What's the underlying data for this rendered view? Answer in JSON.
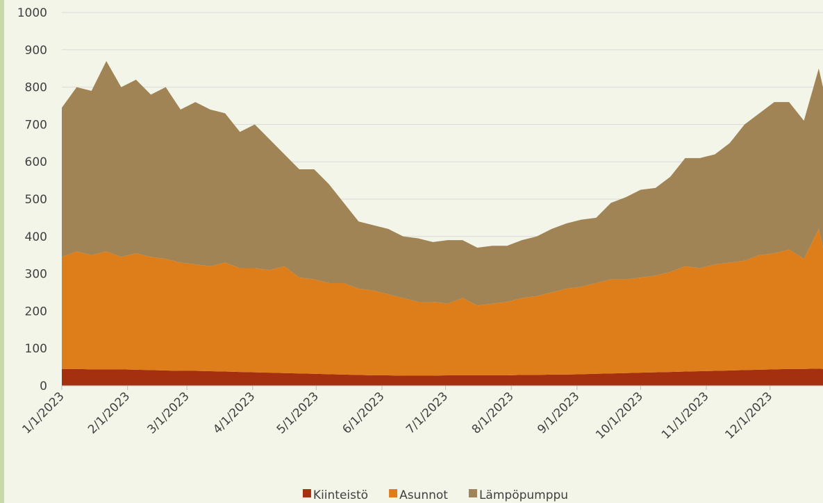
{
  "chart_data": {
    "type": "stacked_area",
    "x": [
      "1/1/2023",
      "1/8/2023",
      "1/15/2023",
      "1/22/2023",
      "1/29/2023",
      "2/5/2023",
      "2/12/2023",
      "2/19/2023",
      "2/26/2023",
      "3/5/2023",
      "3/12/2023",
      "3/19/2023",
      "3/26/2023",
      "4/2/2023",
      "4/9/2023",
      "4/16/2023",
      "4/23/2023",
      "4/30/2023",
      "5/7/2023",
      "5/14/2023",
      "5/21/2023",
      "5/28/2023",
      "6/4/2023",
      "6/11/2023",
      "6/18/2023",
      "6/25/2023",
      "7/2/2023",
      "7/9/2023",
      "7/16/2023",
      "7/23/2023",
      "7/30/2023",
      "8/6/2023",
      "8/13/2023",
      "8/20/2023",
      "8/27/2023",
      "9/3/2023",
      "9/10/2023",
      "9/17/2023",
      "9/24/2023",
      "10/1/2023",
      "10/8/2023",
      "10/15/2023",
      "10/22/2023",
      "10/29/2023",
      "11/5/2023",
      "11/12/2023",
      "11/19/2023",
      "11/26/2023",
      "12/3/2023",
      "12/10/2023",
      "12/17/2023",
      "12/24/2023",
      "12/26/2023"
    ],
    "series": [
      {
        "name": "Kiinteistö",
        "color": "#a5300f",
        "values": [
          45,
          45,
          44,
          44,
          44,
          43,
          42,
          41,
          40,
          40,
          39,
          38,
          37,
          36,
          35,
          34,
          33,
          32,
          31,
          30,
          29,
          28,
          28,
          27,
          27,
          27,
          28,
          28,
          28,
          28,
          28,
          29,
          29,
          30,
          30,
          31,
          32,
          33,
          34,
          35,
          36,
          37,
          38,
          39,
          40,
          41,
          42,
          43,
          44,
          45,
          45,
          46,
          45
        ]
      },
      {
        "name": "Asunnot",
        "color": "#de7e1b",
        "values": [
          300,
          315,
          306,
          316,
          301,
          312,
          303,
          299,
          290,
          285,
          281,
          292,
          278,
          279,
          275,
          286,
          257,
          253,
          244,
          245,
          231,
          227,
          217,
          208,
          198,
          198,
          192,
          207,
          187,
          192,
          197,
          206,
          211,
          220,
          230,
          234,
          243,
          252,
          251,
          255,
          259,
          268,
          282,
          276,
          285,
          289,
          293,
          307,
          311,
          320,
          295,
          374,
          325
        ]
      },
      {
        "name": "Lämpöpumppu",
        "color": "#a08456",
        "values": [
          400,
          440,
          440,
          510,
          455,
          465,
          435,
          460,
          410,
          435,
          420,
          400,
          365,
          385,
          350,
          300,
          290,
          295,
          265,
          215,
          180,
          175,
          175,
          165,
          170,
          160,
          170,
          155,
          155,
          155,
          150,
          155,
          160,
          170,
          175,
          180,
          175,
          205,
          220,
          235,
          235,
          255,
          290,
          295,
          295,
          320,
          365,
          380,
          405,
          395,
          370,
          430,
          430
        ]
      }
    ],
    "xlim": [
      "1/1/2023",
      "12/26/2023"
    ],
    "xticks": [
      "1/1/2023",
      "2/1/2023",
      "3/1/2023",
      "4/1/2023",
      "5/1/2023",
      "6/1/2023",
      "7/1/2023",
      "8/1/2023",
      "9/1/2023",
      "10/1/2023",
      "11/1/2023",
      "12/1/2023"
    ],
    "ylim": [
      0,
      1000
    ],
    "yticks": [
      0,
      100,
      200,
      300,
      400,
      500,
      600,
      700,
      800,
      900,
      1000
    ],
    "grid": true,
    "legend": "bottom"
  }
}
